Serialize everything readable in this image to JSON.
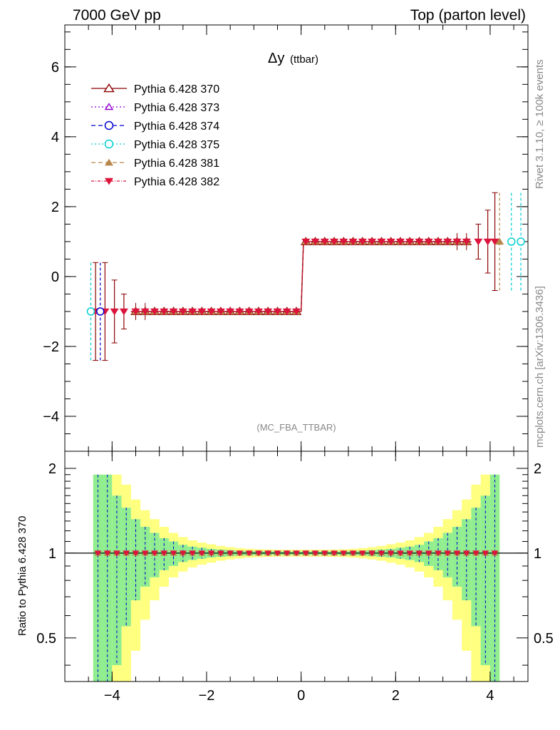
{
  "header": {
    "left": "7000 GeV pp",
    "right": "Top (parton level)"
  },
  "side_labels": {
    "rivet": "Rivet 3.1.10, ≥ 100k events",
    "mcplots": "mcplots.cern.ch [arXiv:1306.3436]"
  },
  "plot": {
    "title_main": "Δy",
    "title_sub": "(ttbar)",
    "analysis_tag": "(MC_FBA_TTBAR)",
    "ratio_ylabel": "Ratio to Pythia 6.428 370"
  },
  "colors": {
    "s370": "#8b0000",
    "s373": "#9400d3",
    "s374": "#0000cd",
    "s375": "#00ced1",
    "s381": "#b8864b",
    "s382": "#dc143c",
    "band_green": "#90ee90",
    "band_yellow": "#ffff80"
  },
  "chart_data": [
    {
      "type": "line",
      "xlim": [
        -5.0,
        4.8
      ],
      "ylim": [
        -5.0,
        7.2
      ],
      "x_ticks": [
        "−4",
        "−2",
        "0",
        "2",
        "4"
      ],
      "y_ticks": [
        "−4",
        "−2",
        "0",
        "2",
        "4",
        "6"
      ],
      "x_ticks_values": [
        -4,
        -2,
        0,
        2,
        4
      ],
      "y_ticks_values": [
        -4,
        -2,
        0,
        2,
        4,
        6
      ],
      "x_bin_edges_main": [
        -3.6,
        -3.4,
        -3.2,
        -3.0,
        -2.8,
        -2.6,
        -2.4,
        -2.2,
        -2.0,
        -1.8,
        -1.6,
        -1.4,
        -1.2,
        -1.0,
        -0.8,
        -0.6,
        -0.4,
        -0.2,
        0.0,
        0.2,
        0.4,
        0.6,
        0.8,
        1.0,
        1.2,
        1.4,
        1.6,
        1.8,
        2.0,
        2.2,
        2.4,
        2.6,
        2.8,
        3.0,
        3.2,
        3.4,
        3.6
      ],
      "legend_position": "top-left",
      "series": [
        {
          "name": "Pythia 6.428 370",
          "marker": "triangle-open",
          "values_left": -1,
          "values_right": 1
        },
        {
          "name": "Pythia 6.428 373",
          "marker": "triangle-open-small",
          "values_left": -1,
          "values_right": 1
        },
        {
          "name": "Pythia 6.428 374",
          "marker": "circle-open",
          "values_left": -1,
          "values_right": 1
        },
        {
          "name": "Pythia 6.428 375",
          "marker": "circle-open",
          "values_left": -1,
          "values_right": 1
        },
        {
          "name": "Pythia 6.428 381",
          "marker": "triangle-filled",
          "values_left": -1,
          "values_right": 1
        },
        {
          "name": "Pythia 6.428 382",
          "marker": "triangle-down-filled",
          "values_left": -1,
          "values_right": 1
        }
      ],
      "outer_points": [
        {
          "x": -4.45,
          "y": -1,
          "err": 1.4,
          "series": "Pythia 6.428 375"
        },
        {
          "x": -4.25,
          "y": -1,
          "err": 1.4,
          "series": "Pythia 6.428 374"
        },
        {
          "x": 4.2,
          "y": 1,
          "err": 1.4,
          "series": "Pythia 6.428 381"
        },
        {
          "x": 4.45,
          "y": 1,
          "err": 1.4,
          "series": "Pythia 6.428 375"
        },
        {
          "x": 4.65,
          "y": 1,
          "err": 1.4,
          "series": "Pythia 6.428 375"
        }
      ]
    },
    {
      "type": "line",
      "xlim": [
        -5.0,
        4.8
      ],
      "ylim": [
        0.35,
        2.3
      ],
      "y_scale": "log",
      "y_ticks": [
        "0.5",
        "1",
        "2"
      ],
      "y_ticks_values": [
        0.5,
        1,
        2
      ],
      "reference": 1.0,
      "band_x": [
        -4.4,
        -4.2,
        -4.0,
        -3.8,
        -3.6,
        -3.4,
        -3.2,
        -3.0,
        -2.8,
        -2.6,
        -2.4,
        -2.2,
        -2.0,
        -1.8,
        -1.6,
        -1.4,
        -1.2,
        -1.0,
        -0.8,
        -0.6,
        -0.4,
        -0.2,
        0.0,
        0.2,
        0.4,
        0.6,
        0.8,
        1.0,
        1.2,
        1.4,
        1.6,
        1.8,
        2.0,
        2.2,
        2.4,
        2.6,
        2.8,
        3.0,
        3.2,
        3.4,
        3.6,
        3.8,
        4.0,
        4.2
      ],
      "band_green_halfwidth": [
        0.9,
        0.9,
        0.6,
        0.45,
        0.32,
        0.24,
        0.18,
        0.13,
        0.1,
        0.07,
        0.055,
        0.045,
        0.035,
        0.03,
        0.025,
        0.02,
        0.018,
        0.016,
        0.015,
        0.014,
        0.014,
        0.014,
        0.014,
        0.014,
        0.014,
        0.015,
        0.016,
        0.018,
        0.02,
        0.025,
        0.03,
        0.035,
        0.045,
        0.055,
        0.07,
        0.1,
        0.13,
        0.18,
        0.24,
        0.32,
        0.45,
        0.6,
        0.9
      ],
      "band_yellow_halfwidth": [
        0.9,
        0.9,
        0.9,
        0.75,
        0.55,
        0.42,
        0.32,
        0.24,
        0.18,
        0.14,
        0.11,
        0.09,
        0.075,
        0.06,
        0.05,
        0.042,
        0.036,
        0.032,
        0.03,
        0.028,
        0.028,
        0.028,
        0.028,
        0.028,
        0.028,
        0.03,
        0.032,
        0.036,
        0.042,
        0.05,
        0.06,
        0.075,
        0.09,
        0.11,
        0.14,
        0.18,
        0.24,
        0.32,
        0.42,
        0.55,
        0.75,
        0.9,
        0.9
      ]
    }
  ]
}
